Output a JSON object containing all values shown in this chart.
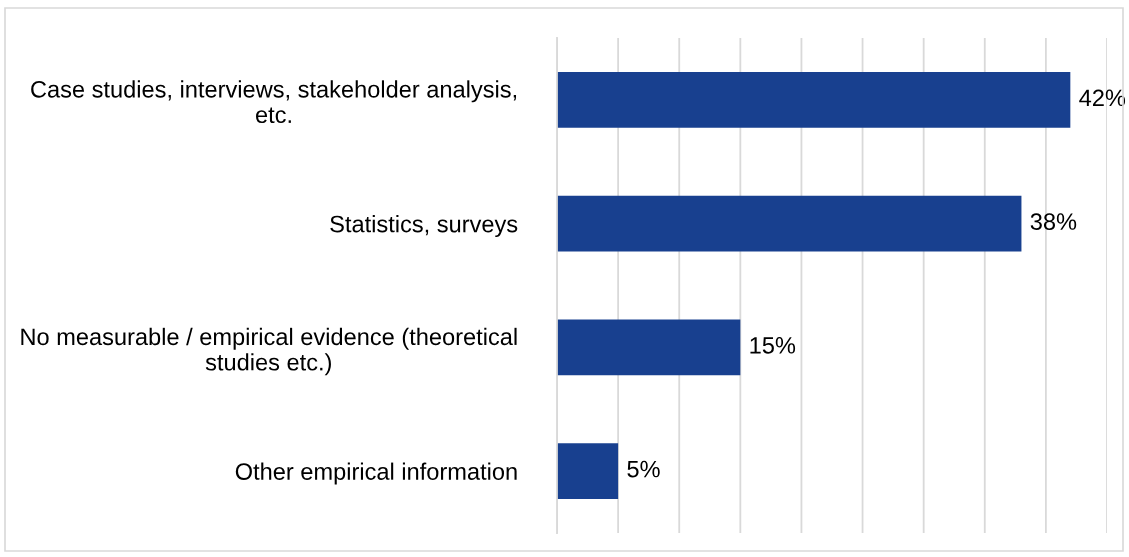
{
  "chart_data": {
    "type": "bar",
    "orientation": "horizontal",
    "categories": [
      "Case studies, interviews, stakeholder analysis, etc.",
      "Statistics, surveys",
      "No measurable / empirical evidence (theoretical studies etc.)",
      "Other empirical information"
    ],
    "values": [
      42,
      38,
      15,
      5
    ],
    "color": "#18408f",
    "value_labels": [
      "42%",
      "38%",
      "15%",
      "5%"
    ],
    "xlim": [
      0,
      45
    ],
    "xticks": [
      {
        "value": 0,
        "label": null
      },
      {
        "value": 5,
        "label": null
      },
      {
        "value": 10,
        "label": null
      },
      {
        "value": 15,
        "label": null
      },
      {
        "value": 20,
        "label": null
      },
      {
        "value": 25,
        "label": null
      },
      {
        "value": 30,
        "label": null
      },
      {
        "value": 35,
        "label": null
      },
      {
        "value": 40,
        "label": null
      },
      {
        "value": 45,
        "label": null
      }
    ],
    "grid": "x",
    "tick_labels": "y"
  }
}
